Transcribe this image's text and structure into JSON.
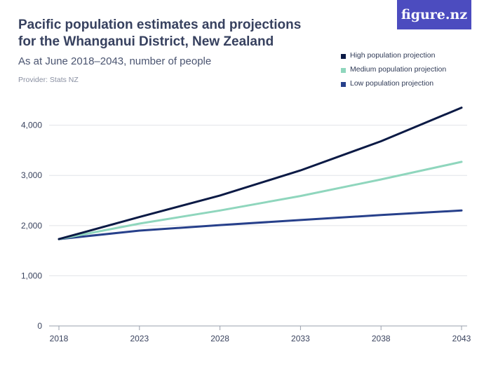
{
  "header": {
    "title": "Pacific population estimates and projections for the Whanganui District, New Zealand",
    "subtitle": "As at June 2018–2043, number of people",
    "provider": "Provider: Stats NZ",
    "logo_text": "figure.nz"
  },
  "chart_data": {
    "type": "line",
    "x": [
      2018,
      2023,
      2028,
      2033,
      2038,
      2043
    ],
    "x_tick_labels": [
      "2018",
      "2023",
      "2028",
      "2033",
      "2038",
      "2043"
    ],
    "y_ticks": [
      0,
      1000,
      2000,
      3000,
      4000
    ],
    "y_tick_labels": [
      "0",
      "1,000",
      "2,000",
      "3,000",
      "4,000"
    ],
    "ylim": [
      0,
      4400
    ],
    "grid": true,
    "legend_position": "top-right",
    "series": [
      {
        "name": "High population projection",
        "color": "#0b1a45",
        "values": [
          1730,
          2170,
          2600,
          3100,
          3680,
          4350
        ]
      },
      {
        "name": "Medium population projection",
        "color": "#8fd6bd",
        "values": [
          1730,
          2040,
          2300,
          2590,
          2920,
          3270
        ]
      },
      {
        "name": "Low population projection",
        "color": "#27408b",
        "values": [
          1730,
          1900,
          2010,
          2110,
          2210,
          2300
        ]
      }
    ]
  }
}
